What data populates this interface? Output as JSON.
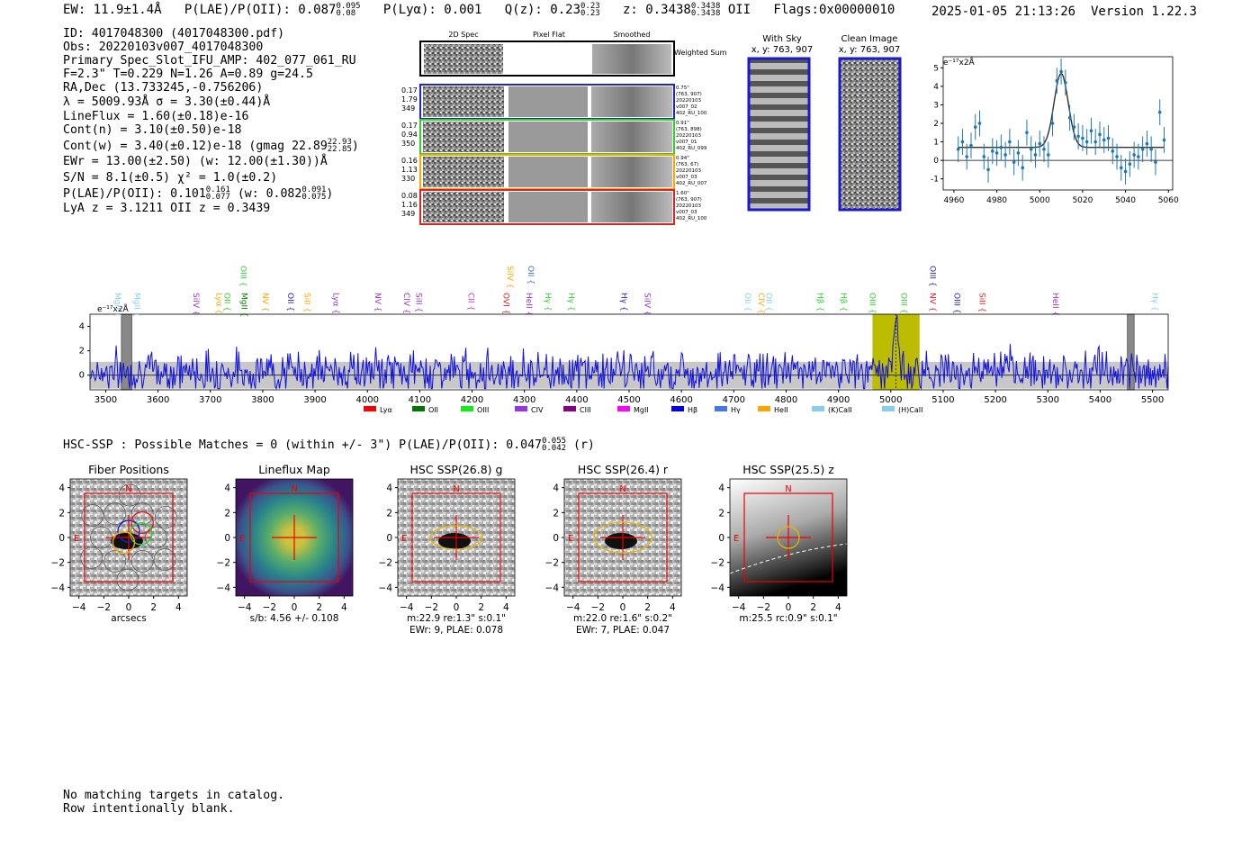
{
  "header": {
    "ew": "EW: 11.9±1.4Å",
    "plae_label": "P(LAE)/P(OII): 0.087",
    "plae_hi": "0.095",
    "plae_lo": "0.08",
    "plya": "P(Lyα): 0.001",
    "qz_label": "Q(z): 0.23",
    "qz_hi": "0.23",
    "qz_lo": "0.23",
    "z_label": "z: 0.3438",
    "z_hi": "0.3438",
    "z_lo": "0.3438",
    "z_line": "OII",
    "flags": "Flags:0x00000010",
    "timestamp": "2025-01-05 21:13:26",
    "version": "Version 1.22.3"
  },
  "info": {
    "id": "ID: 4017048300 (4017048300.pdf)",
    "obs": "Obs: 20220103v007_4017048300",
    "primary": "Primary Spec_Slot_IFU_AMP: 402_077_061_RU",
    "fit": "F=2.3\"  T=0.229  N=1.26  A=0.89  g=24.5",
    "radec": "RA,Dec (13.733245,-0.756206)",
    "lambda": "λ = 5009.93Å   σ = 3.30(±0.44)Å",
    "lineflux": "LineFlux = 1.60(±0.18)e-16",
    "contn": "Cont(n) = 3.10(±0.50)e-18",
    "contw": "Cont(w) = 3.40(±0.12)e-18 (gmag 22.89",
    "contw_hi": "22.93",
    "contw_lo": "22.85",
    "ewr": "EWr = 13.00(±2.50) (w: 12.00(±1.30))Å",
    "sn": "S/N = 8.1(±0.5)   χ² = 1.0(±0.2)",
    "plae": "P(LAE)/P(OII): 0.101",
    "plae_hi": "0.161",
    "plae_lo": "0.077",
    "plae_w": "(w: 0.082",
    "plae_w_hi": "0.091",
    "plae_w_lo": "0.075",
    "lya": "LyA z = 3.1211  OII z = 0.3439"
  },
  "cutouts": {
    "col_labels": [
      "2D Spec",
      "Pixel Flat",
      "Smoothed"
    ],
    "weighted_sum": "Weighted Sum",
    "rows": [
      {
        "color": "#2222cc",
        "left": [
          "0.17",
          "1.79",
          "349"
        ],
        "right": [
          "0.75\"",
          "(763, 907)",
          "20220103",
          "v007_02",
          "402_RU_100"
        ]
      },
      {
        "color": "#33cc33",
        "left": [
          "0.17",
          "0.94",
          "350"
        ],
        "right": [
          "0.91\"",
          "(763, 898)",
          "20220103",
          "v007_01",
          "402_RU_099"
        ]
      },
      {
        "color": "#ffa500",
        "left": [
          "0.16",
          "1.13",
          "330"
        ],
        "right": [
          "0.94\"",
          "(763, 67)",
          "20220103",
          "v007_03",
          "402_RU_007"
        ]
      },
      {
        "color": "#dd2222",
        "left": [
          "0.08",
          "1.16",
          "349"
        ],
        "right": [
          "1.60\"",
          "(763, 907)",
          "20220103",
          "v007_03",
          "402_RU_100"
        ]
      }
    ],
    "with_sky": "With Sky",
    "clean_image": "Clean Image",
    "xy": "x, y: 763, 907"
  },
  "chart_data": [
    {
      "type": "scatter",
      "title": "Emission line fit",
      "ylabel": "e⁻¹⁷x2Å",
      "xlim": [
        4955,
        5062
      ],
      "ylim": [
        -1.6,
        5.6
      ],
      "xticks": [
        4960,
        4980,
        5000,
        5020,
        5040,
        5060
      ],
      "yticks": [
        -1,
        0,
        1,
        2,
        3,
        4,
        5
      ],
      "points": [
        [
          4962,
          0.6
        ],
        [
          4964,
          1.0
        ],
        [
          4966,
          0.2
        ],
        [
          4968,
          0.8
        ],
        [
          4970,
          1.8
        ],
        [
          4972,
          2.0
        ],
        [
          4974,
          0.2
        ],
        [
          4976,
          -0.5
        ],
        [
          4978,
          0.5
        ],
        [
          4980,
          0.4
        ],
        [
          4982,
          0.7
        ],
        [
          4984,
          0.3
        ],
        [
          4986,
          1.0
        ],
        [
          4988,
          -0.1
        ],
        [
          4990,
          0.4
        ],
        [
          4992,
          -0.4
        ],
        [
          4994,
          1.5
        ],
        [
          4996,
          0.6
        ],
        [
          4998,
          0.3
        ],
        [
          5000,
          0.9
        ],
        [
          5002,
          0.6
        ],
        [
          5004,
          0.3
        ],
        [
          5006,
          2.0
        ],
        [
          5008,
          4.3
        ],
        [
          5010,
          4.8
        ],
        [
          5012,
          4.2
        ],
        [
          5014,
          2.3
        ],
        [
          5016,
          1.8
        ],
        [
          5018,
          1.3
        ],
        [
          5020,
          1.2
        ],
        [
          5022,
          1.0
        ],
        [
          5024,
          1.6
        ],
        [
          5026,
          1.0
        ],
        [
          5028,
          1.4
        ],
        [
          5030,
          1.1
        ],
        [
          5032,
          1.2
        ],
        [
          5034,
          0.5
        ],
        [
          5036,
          0.2
        ],
        [
          5038,
          -0.4
        ],
        [
          5040,
          -0.6
        ],
        [
          5042,
          -0.2
        ],
        [
          5044,
          0.3
        ],
        [
          5046,
          0.2
        ],
        [
          5048,
          0.6
        ],
        [
          5050,
          0.9
        ],
        [
          5052,
          0.6
        ],
        [
          5054,
          -0.1
        ],
        [
          5056,
          2.6
        ],
        [
          5058,
          1.1
        ]
      ],
      "fit": {
        "center": 5010,
        "sigma": 3.3,
        "amp": 4.0,
        "baseline": 0.7
      }
    },
    {
      "type": "line",
      "title": "Full spectrum",
      "ylabel": "e⁻¹⁷x2Å",
      "xlim": [
        3470,
        5530
      ],
      "ylim": [
        -1.2,
        5.0
      ],
      "xticks": [
        3500,
        3600,
        3700,
        3800,
        3900,
        4000,
        4100,
        4200,
        4300,
        4400,
        4500,
        4600,
        4700,
        4800,
        4900,
        5000,
        5100,
        5200,
        5300,
        5400,
        5500
      ],
      "yticks": [
        0,
        2,
        4
      ],
      "highlight": [
        4965,
        5055
      ],
      "masked": [
        [
          3530,
          3550
        ],
        [
          5452,
          5465
        ]
      ],
      "emission_peak": {
        "center": 5010,
        "height": 4.8,
        "sigma": 4
      },
      "noise_seed": 7,
      "line_labels": [
        {
          "name": "MgII",
          "x": 3518,
          "color": "#87ceeb",
          "level": 1
        },
        {
          "name": "MgII",
          "x": 3555,
          "color": "#87ceeb",
          "level": 1
        },
        {
          "name": "SiIV",
          "x": 3668,
          "color": "#9933cc",
          "level": 1
        },
        {
          "name": "Lyα",
          "x": 3712,
          "color": "#ffa500",
          "level": 1
        },
        {
          "name": "OII",
          "x": 3727,
          "color": "#33cc33",
          "level": 1
        },
        {
          "name": "OIII",
          "x": 3758,
          "color": "#33cc33",
          "level": 2
        },
        {
          "name": "MgII",
          "x": 3760,
          "color": "#008000",
          "level": 1
        },
        {
          "name": "NV",
          "x": 3800,
          "color": "#ffa500",
          "level": 1
        },
        {
          "name": "OII",
          "x": 3848,
          "color": "#2222cc",
          "level": 1
        },
        {
          "name": "SiII",
          "x": 3880,
          "color": "#ffa500",
          "level": 1
        },
        {
          "name": "Lyα",
          "x": 3935,
          "color": "#9933cc",
          "level": 1
        },
        {
          "name": "NV",
          "x": 4015,
          "color": "#9933cc",
          "level": 1
        },
        {
          "name": "CIV",
          "x": 4070,
          "color": "#9933cc",
          "level": 1
        },
        {
          "name": "SiII",
          "x": 4093,
          "color": "#9933cc",
          "level": 1
        },
        {
          "name": "CII",
          "x": 4193,
          "color": "#cc33cc",
          "level": 1
        },
        {
          "name": "OVI",
          "x": 4260,
          "color": "#dd2222",
          "level": 1
        },
        {
          "name": "SiIV",
          "x": 4268,
          "color": "#ffa500",
          "level": 2
        },
        {
          "name": "OII",
          "x": 4307,
          "color": "#4466dd",
          "level": 2
        },
        {
          "name": "HeII",
          "x": 4304,
          "color": "#9933cc",
          "level": 1
        },
        {
          "name": "Hγ",
          "x": 4340,
          "color": "#33cc33",
          "level": 1
        },
        {
          "name": "Hγ",
          "x": 4385,
          "color": "#33cc33",
          "level": 1
        },
        {
          "name": "Hγ",
          "x": 4485,
          "color": "#2222cc",
          "level": 1
        },
        {
          "name": "SiIV",
          "x": 4530,
          "color": "#9933cc",
          "level": 1
        },
        {
          "name": "OII",
          "x": 4722,
          "color": "#87ceeb",
          "level": 1
        },
        {
          "name": "CIV",
          "x": 4748,
          "color": "#ffa500",
          "level": 1
        },
        {
          "name": "OII",
          "x": 4762,
          "color": "#87ceeb",
          "level": 1
        },
        {
          "name": "Hβ",
          "x": 4860,
          "color": "#33cc33",
          "level": 1
        },
        {
          "name": "Hβ",
          "x": 4905,
          "color": "#33cc33",
          "level": 1
        },
        {
          "name": "OIII",
          "x": 4960,
          "color": "#33cc33",
          "level": 1
        },
        {
          "name": "OIII",
          "x": 5020,
          "color": "#33cc33",
          "level": 1
        },
        {
          "name": "NV",
          "x": 5075,
          "color": "#dd2222",
          "level": 1
        },
        {
          "name": "OIII",
          "x": 5075,
          "color": "#2222cc",
          "level": 2
        },
        {
          "name": "OIII",
          "x": 5122,
          "color": "#2222cc",
          "level": 1
        },
        {
          "name": "SiII",
          "x": 5170,
          "color": "#dd2222",
          "level": 1
        },
        {
          "name": "HeII",
          "x": 5310,
          "color": "#9933cc",
          "level": 1
        },
        {
          "name": "Hγ",
          "x": 5500,
          "color": "#87ceeb",
          "level": 1
        }
      ],
      "legend": [
        {
          "name": "Lyα",
          "color": "#ff0000"
        },
        {
          "name": "OII",
          "color": "#007700"
        },
        {
          "name": "OIII",
          "color": "#11ee11"
        },
        {
          "name": "CIV",
          "color": "#9933ee"
        },
        {
          "name": "CIII",
          "color": "#880088"
        },
        {
          "name": "MgII",
          "color": "#ff00ff"
        },
        {
          "name": "Hβ",
          "color": "#0000ee"
        },
        {
          "name": "Hγ",
          "color": "#4477ee"
        },
        {
          "name": "HeII",
          "color": "#ffa500"
        },
        {
          "name": "(K)CaII",
          "color": "#88ccee"
        },
        {
          "name": "(H)CaII",
          "color": "#88ccee"
        }
      ]
    }
  ],
  "hsc": {
    "summary": "HSC-SSP : Possible Matches = 0 (within +/- 3\")  P(LAE)/P(OII): 0.047",
    "summary_hi": "0.055",
    "summary_lo": "0.042",
    "summary_band": "(r)",
    "panels": [
      {
        "title": "Fiber Positions",
        "caption1": "arcsecs",
        "caption2": ""
      },
      {
        "title": "Lineflux Map",
        "caption1": "s/b: 4.56 +/- 0.108",
        "caption2": ""
      },
      {
        "title": "HSC SSP(26.8) g",
        "caption1": "m:22.9  re:1.3\"  s:0.1\"",
        "caption2": "EWr: 9, PLAE: 0.078"
      },
      {
        "title": "HSC SSP(26.4) r",
        "caption1": "m:22.0  re:1.6\"  s:0.2\"",
        "caption2": "EWr: 7, PLAE: 0.047"
      },
      {
        "title": "HSC SSP(25.5) z",
        "caption1": "m:25.5 rc:0.9\"  s:0.1\"",
        "caption2": ""
      }
    ],
    "axis_ticks": [
      "4",
      "2",
      "0",
      "−2",
      "−4"
    ],
    "x_ticks": [
      "−4",
      "−2",
      "0",
      "2",
      "4"
    ],
    "compass_n": "N",
    "compass_e": "E"
  },
  "catalog": {
    "line1": "No matching targets in catalog.",
    "line2": "Row intentionally blank."
  }
}
